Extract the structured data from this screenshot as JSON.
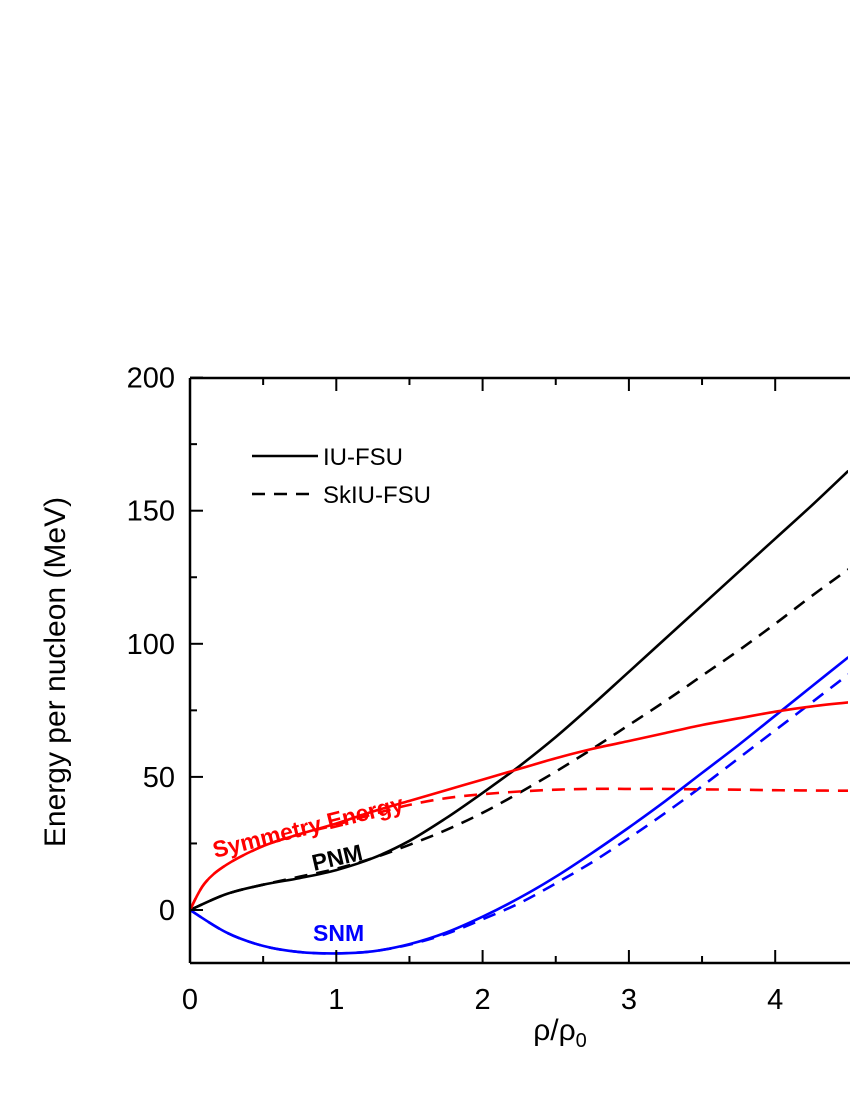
{
  "chart_data": {
    "type": "line",
    "xlabel": "ρ/ρ",
    "xlabel_sub": "0",
    "ylabel": "Energy per nucleon (MeV)",
    "xlim": [
      0,
      4.5
    ],
    "ylim": [
      -20,
      200
    ],
    "xticks": [
      0,
      1,
      2,
      3,
      4
    ],
    "yticks": [
      0,
      50,
      100,
      150,
      200
    ],
    "grid": false,
    "legend_position": "top-left",
    "legend": [
      {
        "label": "IU-FSU",
        "style": "solid"
      },
      {
        "label": "SkIU-FSU",
        "style": "dashed"
      }
    ],
    "annotations": [
      {
        "text": "Symmetry Energy",
        "color": "#ff0000"
      },
      {
        "text": "PNM",
        "color": "#000000"
      },
      {
        "text": "SNM",
        "color": "#0000ff"
      }
    ],
    "series": [
      {
        "group": "PNM",
        "model": "IU-FSU",
        "color": "#000000",
        "style": "solid",
        "x": [
          0,
          0.25,
          0.5,
          0.75,
          1.0,
          1.25,
          1.5,
          1.75,
          2.0,
          2.25,
          2.5,
          2.75,
          3.0,
          3.25,
          3.5,
          3.75,
          4.0,
          4.25,
          4.5
        ],
        "y": [
          0,
          6,
          9.5,
          12,
          15,
          19.5,
          26,
          34.5,
          44,
          54,
          65,
          77,
          89.5,
          102,
          114.5,
          127,
          139.5,
          152,
          165
        ]
      },
      {
        "group": "PNM",
        "model": "SkIU-FSU",
        "color": "#000000",
        "style": "dashed",
        "x": [
          0,
          0.25,
          0.5,
          0.75,
          1.0,
          1.25,
          1.5,
          1.75,
          2.0,
          2.25,
          2.5,
          2.75,
          3.0,
          3.25,
          3.5,
          3.75,
          4.0,
          4.25,
          4.5
        ],
        "y": [
          0,
          6,
          9.5,
          12.5,
          15.5,
          19.5,
          24.5,
          30,
          36.5,
          44,
          52,
          60.5,
          69.5,
          78.5,
          88,
          97.5,
          107.5,
          118,
          128
        ]
      },
      {
        "group": "SNM",
        "model": "IU-FSU",
        "color": "#0000ff",
        "style": "solid",
        "x": [
          0,
          0.25,
          0.5,
          0.75,
          1.0,
          1.25,
          1.5,
          1.75,
          2.0,
          2.25,
          2.5,
          2.75,
          3.0,
          3.25,
          3.5,
          3.75,
          4.0,
          4.25,
          4.5
        ],
        "y": [
          0,
          -8.5,
          -13.5,
          -15.8,
          -16.3,
          -15.5,
          -12.8,
          -8.5,
          -2.5,
          4.5,
          12.5,
          21.5,
          31,
          41,
          51.5,
          62,
          73,
          84,
          95
        ]
      },
      {
        "group": "SNM",
        "model": "SkIU-FSU",
        "color": "#0000ff",
        "style": "dashed",
        "x": [
          0,
          0.25,
          0.5,
          0.75,
          1.0,
          1.25,
          1.5,
          1.75,
          2.0,
          2.25,
          2.5,
          2.75,
          3.0,
          3.25,
          3.5,
          3.75,
          4.0,
          4.25,
          4.5
        ],
        "y": [
          0,
          -8.5,
          -13.5,
          -15.8,
          -16.3,
          -15.5,
          -13,
          -9,
          -3.5,
          2.5,
          10,
          18,
          27,
          36.5,
          46.5,
          57,
          67.5,
          78,
          88.5
        ]
      },
      {
        "group": "Symmetry Energy",
        "model": "IU-FSU",
        "color": "#ff0000",
        "style": "solid",
        "x": [
          0,
          0.1,
          0.25,
          0.5,
          0.75,
          1.0,
          1.25,
          1.5,
          1.75,
          2.0,
          2.25,
          2.5,
          2.75,
          3.0,
          3.25,
          3.5,
          3.75,
          4.0,
          4.25,
          4.5
        ],
        "y": [
          0,
          10,
          17,
          24,
          28.5,
          32.5,
          37,
          41,
          45,
          49,
          53,
          57,
          60.5,
          63.5,
          66.5,
          69.5,
          72,
          74.5,
          76.5,
          78
        ]
      },
      {
        "group": "Symmetry Energy",
        "model": "SkIU-FSU",
        "color": "#ff0000",
        "style": "dashed",
        "x": [
          0,
          0.1,
          0.25,
          0.5,
          0.75,
          1.0,
          1.25,
          1.5,
          1.75,
          2.0,
          2.25,
          2.5,
          2.75,
          3.0,
          3.25,
          3.5,
          3.75,
          4.0,
          4.25,
          4.5
        ],
        "y": [
          0,
          10,
          17,
          24,
          28.5,
          32,
          36,
          39.5,
          42,
          43.5,
          44.5,
          45.2,
          45.5,
          45.5,
          45.5,
          45.3,
          45.2,
          45,
          44.9,
          44.8
        ]
      }
    ]
  }
}
